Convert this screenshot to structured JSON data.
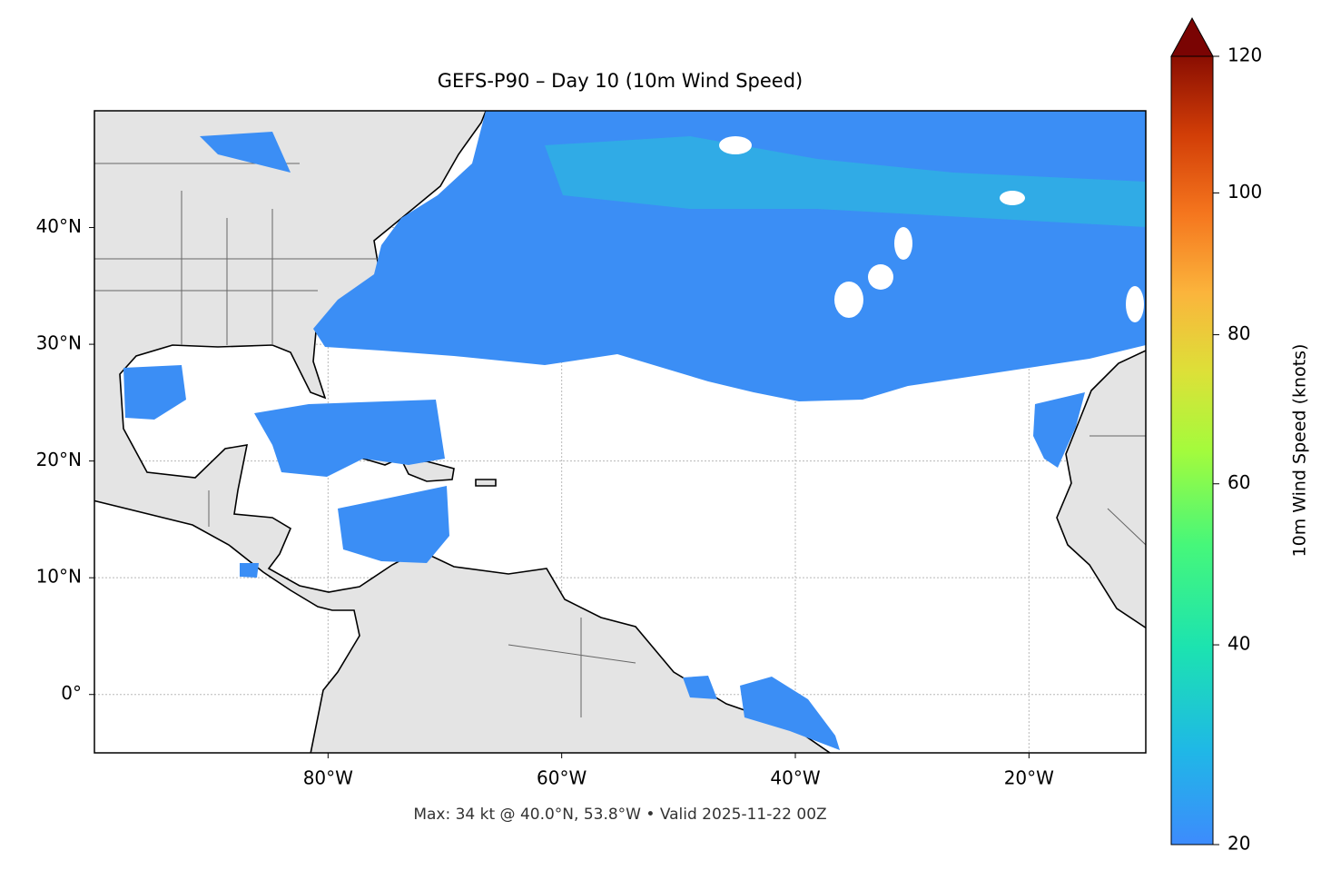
{
  "title": "GEFS-P90 – Day 10 (10m Wind Speed)",
  "footer": "Max: 34 kt @ 40.0°N, 53.8°W • Valid 2025-11-22 00Z",
  "map": {
    "lonlim": [
      -100,
      -10
    ],
    "latlim": [
      -5,
      50
    ],
    "lon_ticks": [
      {
        "value": -80,
        "label": "80°W"
      },
      {
        "value": -60,
        "label": "60°W"
      },
      {
        "value": -40,
        "label": "40°W"
      },
      {
        "value": -20,
        "label": "20°W"
      }
    ],
    "lat_ticks": [
      {
        "value": 0,
        "label": "0°"
      },
      {
        "value": 10,
        "label": "10°N"
      },
      {
        "value": 20,
        "label": "20°N"
      },
      {
        "value": 30,
        "label": "30°N"
      },
      {
        "value": 40,
        "label": "40°N"
      }
    ]
  },
  "colorbar": {
    "label": "10m Wind Speed (knots)",
    "lim": [
      20,
      120
    ],
    "ticks": [
      20,
      40,
      60,
      80,
      100,
      120
    ]
  }
}
